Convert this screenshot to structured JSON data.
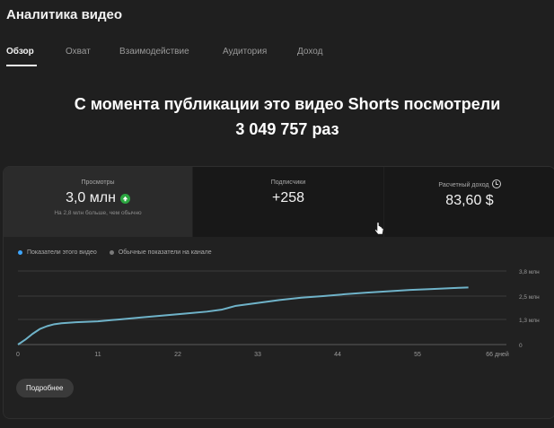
{
  "header": {
    "title": "Аналитика видео"
  },
  "tabs": [
    {
      "label": "Обзор",
      "active": true
    },
    {
      "label": "Охват",
      "active": false
    },
    {
      "label": "Взаимодействие",
      "active": false
    },
    {
      "label": "Аудитория",
      "active": false
    },
    {
      "label": "Доход",
      "active": false
    }
  ],
  "headline": {
    "line1": "С момента публикации это видео Shorts посмотрели",
    "line2": "3 049 757 раз"
  },
  "metrics": [
    {
      "label": "Просмотры",
      "value": "3,0 млн",
      "note": "На 2,8 млн больше, чем обычно",
      "icon": "arrow-up-icon"
    },
    {
      "label": "Подписчики",
      "value": "+258"
    },
    {
      "label": "Расчетный доход",
      "value": "83,60 $",
      "icon": "clock-icon"
    }
  ],
  "legend": [
    {
      "label": "Показатели этого видео",
      "color": "#3ea6ff"
    },
    {
      "label": "Обычные показатели на канале",
      "color": "#7a7a7a"
    }
  ],
  "chart_data": {
    "type": "line",
    "x_ticks": [
      "0",
      "11",
      "22",
      "33",
      "44",
      "55",
      "66 дней"
    ],
    "y_ticks": [
      "3,8 млн",
      "2,5 млн",
      "1,3 млн",
      "0"
    ],
    "xlim": [
      0,
      66
    ],
    "ylim": [
      0,
      3.8
    ],
    "series": [
      {
        "color": "#6fb3c9",
        "x": [
          0,
          1,
          2,
          3,
          4,
          5,
          6,
          8,
          11,
          14,
          17,
          20,
          23,
          26,
          28,
          30,
          33,
          36,
          39,
          42,
          45,
          48,
          51,
          54,
          57,
          60,
          62
        ],
        "y": [
          0,
          0.25,
          0.55,
          0.8,
          0.95,
          1.05,
          1.1,
          1.15,
          1.2,
          1.3,
          1.4,
          1.5,
          1.6,
          1.7,
          1.8,
          2.0,
          2.15,
          2.3,
          2.42,
          2.5,
          2.6,
          2.68,
          2.75,
          2.82,
          2.87,
          2.92,
          2.95
        ]
      }
    ]
  },
  "button": {
    "label": "Подробнее"
  }
}
